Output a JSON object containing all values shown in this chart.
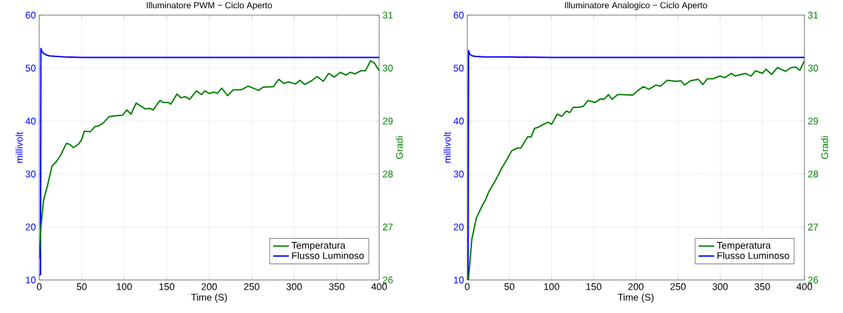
{
  "chart_data": [
    {
      "type": "line",
      "title": "Illuminatore PWM − Ciclo Aperto",
      "xlabel": "Time (S)",
      "ylabel": "millivolt",
      "y2label": "Gradi",
      "xlim": [
        0,
        400
      ],
      "xticks": [
        0,
        50,
        100,
        150,
        200,
        250,
        300,
        350,
        400
      ],
      "ylim": [
        10,
        60
      ],
      "yticks": [
        10,
        20,
        30,
        40,
        50,
        60
      ],
      "y2lim": [
        26,
        31
      ],
      "y2ticks": [
        26,
        27,
        28,
        29,
        30,
        31
      ],
      "grid": true,
      "legend": "bottom right",
      "series": [
        {
          "name": "Temperatura",
          "color": "#008000",
          "axis": "y2",
          "x": [
            0,
            2,
            5,
            10,
            15,
            20,
            25,
            32,
            36,
            40,
            46,
            50,
            53,
            60,
            66,
            70,
            75,
            82,
            90,
            98,
            103,
            108,
            114,
            125,
            130,
            134,
            142,
            146,
            152,
            155,
            162,
            167,
            172,
            177,
            185,
            191,
            195,
            200,
            205.4,
            209.5,
            214.9,
            221.6,
            228.4,
            237.8,
            245.9,
            258,
            263.5,
            275.7,
            281.9,
            287.8,
            293.2,
            301.4,
            306.8,
            312.2,
            320.3,
            327,
            334.3,
            340.5,
            347.3,
            354,
            360.8,
            366.2,
            371.6,
            378.4,
            383.8,
            390,
            394.6,
            400
          ],
          "values": [
            26.4,
            27.0,
            27.5,
            27.8,
            28.15,
            28.23,
            28.35,
            28.58,
            28.56,
            28.5,
            28.56,
            28.65,
            28.81,
            28.8,
            28.9,
            28.91,
            28.96,
            29.08,
            29.1,
            29.11,
            29.21,
            29.13,
            29.34,
            29.23,
            29.24,
            29.21,
            29.39,
            29.35,
            29.35,
            29.32,
            29.51,
            29.44,
            29.46,
            29.41,
            29.57,
            29.5,
            29.57,
            29.52,
            29.55,
            29.52,
            29.62,
            29.48,
            29.59,
            29.59,
            29.66,
            29.58,
            29.64,
            29.65,
            29.79,
            29.71,
            29.74,
            29.7,
            29.77,
            29.69,
            29.76,
            29.84,
            29.75,
            29.9,
            29.83,
            29.92,
            29.87,
            29.92,
            29.89,
            29.95,
            29.95,
            30.14,
            30.09,
            29.95
          ]
        },
        {
          "name": "Flusso Luminoso",
          "color": "#0000ff",
          "x": [
            0,
            0.5,
            1.5,
            2,
            3,
            5,
            8,
            12,
            20,
            30,
            50,
            100,
            150,
            200,
            250,
            300,
            350,
            400
          ],
          "values": [
            11,
            11,
            11,
            53.7,
            53.2,
            52.8,
            52.5,
            52.3,
            52.2,
            52.1,
            52.0,
            52.0,
            52.0,
            52.0,
            52.0,
            52.0,
            52.0,
            52.0
          ]
        }
      ]
    },
    {
      "type": "line",
      "title": "Illuminatore Analogico − Ciclo Aperto",
      "xlabel": "Time (S)",
      "ylabel": "millivolt",
      "y2label": "Gradi",
      "xlim": [
        0,
        400
      ],
      "xticks": [
        0,
        50,
        100,
        150,
        200,
        250,
        300,
        350,
        400
      ],
      "ylim": [
        10,
        60
      ],
      "yticks": [
        10,
        20,
        30,
        40,
        50,
        60
      ],
      "y2lim": [
        26,
        31
      ],
      "y2ticks": [
        26,
        27,
        28,
        29,
        30,
        31
      ],
      "grid": true,
      "legend": "bottom right",
      "series": [
        {
          "name": "Temperatura",
          "color": "#008000",
          "axis": "y2",
          "x": [
            1.4,
            5.4,
            10.8,
            17.6,
            21.6,
            25.7,
            33.8,
            40.5,
            47.3,
            52.7,
            59.5,
            63.5,
            71.6,
            75.7,
            79.7,
            85.1,
            90.5,
            95.9,
            100,
            106.8,
            112.2,
            117.6,
            121.6,
            125.7,
            132.4,
            137.8,
            143.2,
            151.4,
            158.1,
            162.2,
            167.6,
            171.6,
            178.4,
            182.9,
            196.5,
            201.9,
            208.7,
            215.5,
            223.7,
            229.1,
            237.3,
            248.2,
            253.6,
            257.7,
            264.5,
            274,
            279.5,
            284.9,
            291.7,
            299.9,
            305.3,
            313.5,
            317.6,
            329.8,
            336.6,
            342,
            350.2,
            354.3,
            361.1,
            367.9,
            377.4,
            384.2,
            389.7,
            394.6,
            400
          ],
          "values": [
            26.0,
            26.77,
            27.17,
            27.4,
            27.51,
            27.67,
            27.89,
            28.1,
            28.28,
            28.44,
            28.49,
            28.49,
            28.7,
            28.7,
            28.86,
            28.89,
            28.94,
            28.98,
            28.94,
            29.13,
            29.09,
            29.19,
            29.16,
            29.26,
            29.26,
            29.28,
            29.39,
            29.35,
            29.42,
            29.41,
            29.5,
            29.41,
            29.5,
            29.5,
            29.49,
            29.57,
            29.65,
            29.6,
            29.68,
            29.66,
            29.77,
            29.75,
            29.76,
            29.68,
            29.76,
            29.79,
            29.69,
            29.8,
            29.8,
            29.85,
            29.82,
            29.9,
            29.85,
            29.9,
            29.85,
            29.95,
            29.9,
            29.98,
            29.88,
            30.01,
            29.94,
            30.01,
            30.02,
            29.96,
            30.14
          ]
        },
        {
          "name": "Flusso Luminoso",
          "color": "#0000ff",
          "x": [
            0,
            1,
            1.5,
            3,
            6,
            10,
            20,
            50,
            100,
            200,
            300,
            400
          ],
          "values": [
            10,
            10,
            53.3,
            52.6,
            52.3,
            52.2,
            52.1,
            52.1,
            52.0,
            52.0,
            52.0,
            52.0
          ]
        }
      ]
    }
  ]
}
